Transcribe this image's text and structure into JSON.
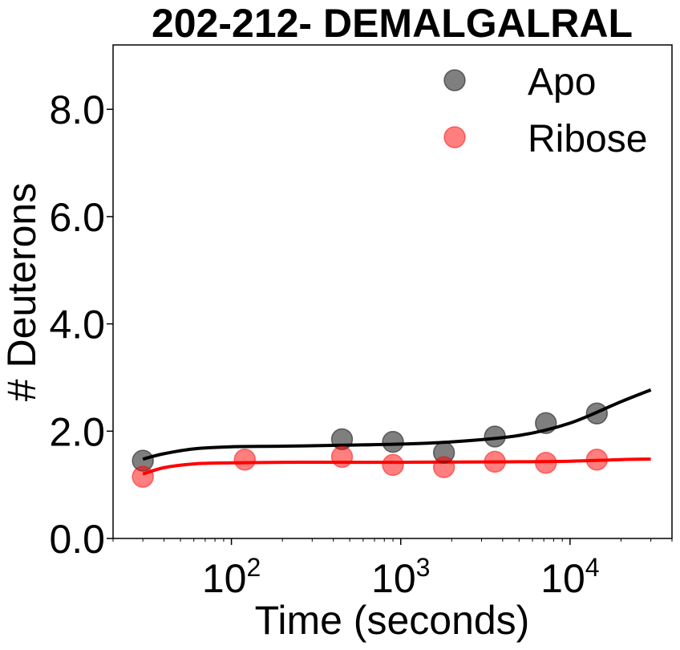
{
  "chart_data": {
    "type": "scatter",
    "title": "202-212- DEMALGALRAL",
    "xlabel": "Time (seconds)",
    "ylabel": "# Deuterons",
    "xscale": "log",
    "xlim": [
      20,
      40000
    ],
    "ylim": [
      0,
      9.2
    ],
    "yticks": [
      0,
      2,
      4,
      6,
      8
    ],
    "ytick_labels": [
      "0.0",
      "2.0",
      "4.0",
      "6.0",
      "8.0"
    ],
    "xtick_base": "10",
    "xticks": [
      100,
      1000,
      10000
    ],
    "xtick_exponents": [
      "2",
      "3",
      "4"
    ],
    "legend_position": "top-right",
    "series": [
      {
        "name": "Apo",
        "color": "#000000",
        "point_alpha": 0.5,
        "x": [
          30,
          450,
          900,
          1800,
          3600,
          7200,
          14400
        ],
        "y": [
          1.45,
          1.85,
          1.8,
          1.6,
          1.9,
          2.15,
          2.33
        ],
        "fit_x": [
          30,
          40,
          60,
          100,
          200,
          500,
          1000,
          2000,
          5000,
          10000,
          20000,
          30000
        ],
        "fit_y": [
          1.48,
          1.58,
          1.67,
          1.71,
          1.72,
          1.74,
          1.76,
          1.8,
          1.92,
          2.15,
          2.55,
          2.77
        ]
      },
      {
        "name": "Ribose",
        "color": "#ff0000",
        "point_alpha": 0.5,
        "x": [
          30,
          120,
          450,
          900,
          1800,
          3600,
          7200,
          14400
        ],
        "y": [
          1.15,
          1.47,
          1.52,
          1.37,
          1.33,
          1.43,
          1.41,
          1.47
        ],
        "fit_x": [
          30,
          40,
          60,
          100,
          200,
          500,
          1000,
          5000,
          10000,
          20000,
          30000
        ],
        "fit_y": [
          1.2,
          1.32,
          1.39,
          1.41,
          1.42,
          1.42,
          1.42,
          1.43,
          1.44,
          1.47,
          1.48
        ]
      }
    ]
  }
}
